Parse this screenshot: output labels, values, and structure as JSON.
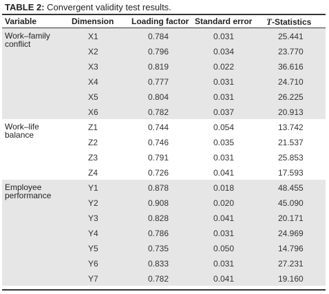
{
  "caption": {
    "label": "TABLE 2:",
    "text": " Convergent validity test results."
  },
  "headers": {
    "variable": "Variable",
    "dimension": "Dimension",
    "loading": "Loading factor",
    "se": "Standard error",
    "t_italic": "T",
    "t_rest": "-Statistics"
  },
  "groups": [
    {
      "variable": "Work–family conflict",
      "rows": [
        {
          "dim": "X1",
          "load": "0.784",
          "se": "0.031",
          "t": "25.441"
        },
        {
          "dim": "X2",
          "load": "0.796",
          "se": "0.034",
          "t": "23.770"
        },
        {
          "dim": "X3",
          "load": "0.819",
          "se": "0.022",
          "t": "36.616"
        },
        {
          "dim": "X4",
          "load": "0.777",
          "se": "0.031",
          "t": "24.710"
        },
        {
          "dim": "X5",
          "load": "0.804",
          "se": "0.031",
          "t": "26.225"
        },
        {
          "dim": "X6",
          "load": "0.782",
          "se": "0.037",
          "t": "20.913"
        }
      ]
    },
    {
      "variable": "Work–life balance",
      "rows": [
        {
          "dim": "Z1",
          "load": "0.744",
          "se": "0.054",
          "t": "13.742"
        },
        {
          "dim": "Z2",
          "load": "0.746",
          "se": "0.035",
          "t": "21.537"
        },
        {
          "dim": "Z3",
          "load": "0.791",
          "se": "0.031",
          "t": "25.853"
        },
        {
          "dim": "Z4",
          "load": "0.726",
          "se": "0.041",
          "t": "17.593"
        }
      ]
    },
    {
      "variable": "Employee performance",
      "rows": [
        {
          "dim": "Y1",
          "load": "0.878",
          "se": "0.018",
          "t": "48.455"
        },
        {
          "dim": "Y2",
          "load": "0.908",
          "se": "0.020",
          "t": "45.090"
        },
        {
          "dim": "Y3",
          "load": "0.828",
          "se": "0.041",
          "t": "20.171"
        },
        {
          "dim": "Y4",
          "load": "0.786",
          "se": "0.031",
          "t": "24.969"
        },
        {
          "dim": "Y5",
          "load": "0.735",
          "se": "0.050",
          "t": "14.796"
        },
        {
          "dim": "Y6",
          "load": "0.833",
          "se": "0.031",
          "t": "27.231"
        },
        {
          "dim": "Y7",
          "load": "0.782",
          "se": "0.041",
          "t": "19.160"
        }
      ]
    }
  ]
}
